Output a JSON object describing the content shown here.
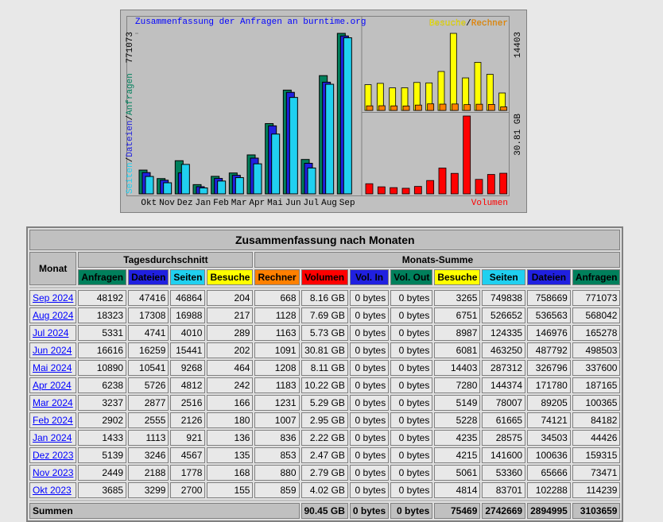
{
  "chart_data": [
    {
      "type": "bar",
      "title": "Zusammenfassung der Anfragen an burntime.org",
      "separator": "/",
      "categories": [
        "Okt",
        "Nov",
        "Dez",
        "Jan",
        "Feb",
        "Mar",
        "Apr",
        "Mai",
        "Jun",
        "Jul",
        "Aug",
        "Sep"
      ],
      "series": [
        {
          "name": "Anfragen",
          "color": "#00805c",
          "values": [
            114239,
            73471,
            159315,
            44426,
            84182,
            100365,
            187165,
            337600,
            498503,
            165278,
            568042,
            771073
          ]
        },
        {
          "name": "Dateien",
          "color": "#2020e0",
          "values": [
            102288,
            65666,
            100636,
            34503,
            74121,
            89205,
            171780,
            326796,
            487792,
            146976,
            536563,
            758669
          ]
        },
        {
          "name": "Seiten",
          "color": "#20d0f0",
          "values": [
            83701,
            53360,
            141600,
            28575,
            61665,
            78007,
            144374,
            287312,
            463250,
            124335,
            526652,
            749838
          ]
        }
      ],
      "ylim": [
        0,
        771073
      ],
      "yticks": [
        771073
      ]
    },
    {
      "type": "bar",
      "separator": "/",
      "series": [
        {
          "name": "Besuche",
          "color": "#ffff00",
          "values": [
            4814,
            5061,
            4215,
            4235,
            5228,
            5149,
            7280,
            14403,
            6081,
            8987,
            6751,
            3265
          ]
        },
        {
          "name": "Rechner",
          "color": "#ff8000",
          "values": [
            859,
            880,
            853,
            836,
            1007,
            1231,
            1183,
            1208,
            1091,
            1163,
            1128,
            668
          ]
        }
      ],
      "ylim": [
        0,
        14403
      ],
      "yticks": [
        14403
      ]
    },
    {
      "type": "bar",
      "series": [
        {
          "name": "Volumen",
          "color": "#ff0000",
          "values": [
            4.02,
            2.79,
            2.47,
            2.22,
            2.95,
            5.29,
            10.22,
            8.11,
            30.81,
            5.73,
            7.69,
            8.16
          ]
        }
      ],
      "ylim": [
        0,
        30.81
      ],
      "yticks": [
        {
          "value": 30.81,
          "label": "30.81 GB"
        }
      ]
    }
  ],
  "table": {
    "title": "Zusammenfassung nach Monaten",
    "month_header": "Monat",
    "group_headers": [
      "Tagesdurchschnitt",
      "Monats-Summe"
    ],
    "columns": [
      {
        "label": "Anfragen",
        "color": "#00805c"
      },
      {
        "label": "Dateien",
        "color": "#2020e0"
      },
      {
        "label": "Seiten",
        "color": "#20d0f0"
      },
      {
        "label": "Besuche",
        "color": "#ffff00"
      },
      {
        "label": "Rechner",
        "color": "#ff8000"
      },
      {
        "label": "Volumen",
        "color": "#ff0000"
      },
      {
        "label": "Vol. In",
        "color": "#2020e0"
      },
      {
        "label": "Vol. Out",
        "color": "#00805c"
      },
      {
        "label": "Besuche",
        "color": "#ffff00"
      },
      {
        "label": "Seiten",
        "color": "#20d0f0"
      },
      {
        "label": "Dateien",
        "color": "#2020e0"
      },
      {
        "label": "Anfragen",
        "color": "#00805c"
      }
    ],
    "rows": [
      [
        "Sep 2024",
        48192,
        47416,
        46864,
        204,
        668,
        "8.16 GB",
        "0 bytes",
        "0 bytes",
        3265,
        749838,
        758669,
        771073
      ],
      [
        "Aug 2024",
        18323,
        17308,
        16988,
        217,
        1128,
        "7.69 GB",
        "0 bytes",
        "0 bytes",
        6751,
        526652,
        536563,
        568042
      ],
      [
        "Jul 2024",
        5331,
        4741,
        4010,
        289,
        1163,
        "5.73 GB",
        "0 bytes",
        "0 bytes",
        8987,
        124335,
        146976,
        165278
      ],
      [
        "Jun 2024",
        16616,
        16259,
        15441,
        202,
        1091,
        "30.81 GB",
        "0 bytes",
        "0 bytes",
        6081,
        463250,
        487792,
        498503
      ],
      [
        "Mai 2024",
        10890,
        10541,
        9268,
        464,
        1208,
        "8.11 GB",
        "0 bytes",
        "0 bytes",
        14403,
        287312,
        326796,
        337600
      ],
      [
        "Apr 2024",
        6238,
        5726,
        4812,
        242,
        1183,
        "10.22 GB",
        "0 bytes",
        "0 bytes",
        7280,
        144374,
        171780,
        187165
      ],
      [
        "Mar 2024",
        3237,
        2877,
        2516,
        166,
        1231,
        "5.29 GB",
        "0 bytes",
        "0 bytes",
        5149,
        78007,
        89205,
        100365
      ],
      [
        "Feb 2024",
        2902,
        2555,
        2126,
        180,
        1007,
        "2.95 GB",
        "0 bytes",
        "0 bytes",
        5228,
        61665,
        74121,
        84182
      ],
      [
        "Jan 2024",
        1433,
        1113,
        921,
        136,
        836,
        "2.22 GB",
        "0 bytes",
        "0 bytes",
        4235,
        28575,
        34503,
        44426
      ],
      [
        "Dez 2023",
        5139,
        3246,
        4567,
        135,
        853,
        "2.47 GB",
        "0 bytes",
        "0 bytes",
        4215,
        141600,
        100636,
        159315
      ],
      [
        "Nov 2023",
        2449,
        2188,
        1778,
        168,
        880,
        "2.79 GB",
        "0 bytes",
        "0 bytes",
        5061,
        53360,
        65666,
        73471
      ],
      [
        "Okt 2023",
        3685,
        3299,
        2700,
        155,
        859,
        "4.02 GB",
        "0 bytes",
        "0 bytes",
        4814,
        83701,
        102288,
        114239
      ]
    ],
    "total": {
      "label": "Summen",
      "values": [
        "90.45 GB",
        "0 bytes",
        "0 bytes",
        75469,
        2742669,
        2894995,
        3103659
      ]
    }
  }
}
